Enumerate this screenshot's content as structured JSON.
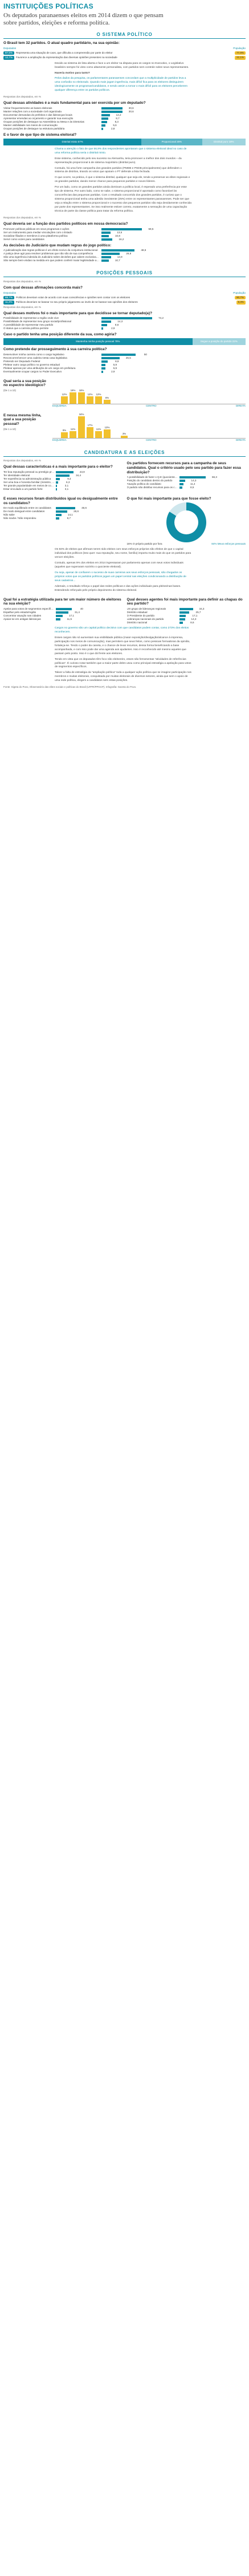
{
  "header": {
    "kicker": "INSTITUIÇÕES POLÍTICAS",
    "deck": "Os deputados paranaenses eleitos em 2014 dizem o que pensam sobre partidos, eleições e reforma política."
  },
  "sections": {
    "s1": "O SISTEMA POLÍTICO",
    "s2": "POSIÇÕES PESSOAIS",
    "s3": "CANDIDATURA E AS ELEIÇÕES"
  },
  "q1": {
    "title": "O Brasil tem 32 partidos. O atual quadro partidário, na sua opinião:",
    "headers": [
      "Deputados",
      "População"
    ],
    "rows": [
      {
        "pct_dep": "87,5%",
        "label": "Representa uma situação de caos, que dificulta a compreensão por parte do eleitor",
        "pct_pop": "77,9%"
      },
      {
        "pct_dep": "12,7%",
        "label": "Favorece a ampliação da representação das diversas opiniões presentes na sociedade",
        "pct_pop": "22,1%"
      }
    ]
  },
  "text1": {
    "p1": "Devido ao sistema de lista aberta e face a um eleitor na disputa para os cargos no Executivo, o Legislativo brasileiro sempre foi visto como altamente personalista, com partidos sem controle sobre seus representantes.",
    "p2": "Haveria motivo para tanto?",
    "p3": "Pelos dados da pesquisa, os parlamentares paranaenses concordam que a multiplicidade de partidos leva a uma confusão no eleitorado. Quando mais jogam ingerência, mais difícil fica para os eleitores distinguirem ideologicamente os programas/candidatos, e sendo assim a tornar o mais difícil para os eleitores perceberem qualquer diferença entre os partidos políticos."
  },
  "q2": {
    "note": "Respostas dos deputados, em %",
    "title": "Qual dessas atividades é a mais fundamental para ser exercida por um deputado?",
    "rows": [
      {
        "label": "Visitar frequentemente as bases eleitorais",
        "value": 30.6
      },
      {
        "label": "Manter relações com a sociedade civil organizada",
        "value": 30.6
      },
      {
        "label": "Documentar demandas do prefeitos e das lideranças locais",
        "value": 12.2
      },
      {
        "label": "Apresentar emendas ao orçamento e garantir sua execução",
        "value": 9.7
      },
      {
        "label": "Ocupar posições de destaque na Assembleia ou Mesa e às Diretorias",
        "value": 8.3
      },
      {
        "label": "Manter visibilidade nos meios de comunicação",
        "value": 5.6
      },
      {
        "label": "Ocupar posições de destaque na estrutura partidária",
        "value": 2.8
      }
    ]
  },
  "q3": {
    "title": "E o favor de que tipo de sistema eleitoral?",
    "segments": [
      {
        "label": "Distrital misto",
        "value": "57%",
        "pct": 57
      },
      {
        "label": "Proporcional",
        "value": "25%",
        "pct": 25
      },
      {
        "label": "Distrital puro",
        "value": "18%",
        "pct": 18
      }
    ]
  },
  "text2": {
    "p1": "Chama a atenção o fato de que 56,9% dos respondentes apontaram que o sistema eleitoral ideal no caso de uma reforma política seria o distrital misto.",
    "p2": "Esse sistema, conhecido pelo seu sucesso na Alemanha, teria promover a melhor dos dois mundos – da representação proporcional à de sistema majoritário (distrital puro).",
    "p3": "Contudo, há uma forte campanha dos grandes partidos (PMDB e PSDB principalmente) que defendem o sistema de distritos, tirando os votos que apoiam o PT defende a lista fechada.",
    "p4": "O que ocorre, na prática, é que o sistema distrital, qualquer que seja ele, tende a preservar as elites regionais e os grandes partidos, dando menor chance para pequenos partidos e novos líderes.",
    "p5": "Por um lado, como os grandes partidos ainda dominam a política local, é esperado uma preferência por esse tipo de sistema. Por outro lado, como se sabe, o sistema proporcional é apontado como favorável às concorrências das pequenas partidas. Com o resultado concorrido dos grandes partidos, é curioso que o sistema proporcional tenha uma adesão inexistente (25%) entre os representantes paranaenses. Pode ser que veja a relação entre o sistema proporcional e o sucesso dos pequenos partidos não seja devidamente conhecida por parte dos representantes. Se isso realmente estiver correto, exatamente a sensação de uma capacitação técnica de parte da classe política para tratar da reforma política."
  },
  "q4": {
    "note": "Respostas dos deputados, em %",
    "title": "Qual deveria ser a função dos partidos políticos em nossa democracia?",
    "rows": [
      {
        "label": "Promover políticas públicas em seus programas e ações",
        "value": 59.5
      },
      {
        "label": "Ser um instrumento para mediar vinculações com o Estado",
        "value": 13.5
      },
      {
        "label": "Socializar filiados e membros à uma plataforma política",
        "value": 10.8
      },
      {
        "label": "Servir como vozes para candidatos",
        "value": 16.2
      }
    ]
  },
  "q5": {
    "title": "As decisões do Judiciário que mudam regras do jogo político:",
    "rows": [
      {
        "label": "A judicialização das regras políticas é um efeito nocivo da conjuntura institucional",
        "value": 48.6
      },
      {
        "label": "A justiça deve agir para resolver problemas que não são de sua competência",
        "value": 26.8
      },
      {
        "label": "São uma ingerência indevida do Judiciário sobre decisões que cabem exclusivamente ao Poder Legislativo",
        "value": 13.9
      },
      {
        "label": "São sempre bem-vindas na medida em que podem conferir maior legitimidade ao sistema político",
        "value": 10.7
      }
    ]
  },
  "q6": {
    "note": "Respostas dos deputados, em %",
    "title": "Com qual dessas afirmações concorda mais?",
    "headers": [
      "Deputados",
      "População"
    ],
    "rows": [
      {
        "pct_dep": "88,7%",
        "label": "Políticos deveriam votar de acordo com suas consciências e opiniões sem contar com os eleitores",
        "pct_pop": "90,7%"
      },
      {
        "pct_dep": "11,3%",
        "label": "Políticos deveriam se basear no seu próprio julgamento ao invés de se basear nas opiniões dos eleitores",
        "pct_pop": "9,3%"
      }
    ]
  },
  "q7": {
    "note": "Respostas dos deputados, em %",
    "title": "Qual desses motivos foi o mais importante para que decidisse se tornar deputado(a)?",
    "rows": [
      {
        "label": "Possibilidade de representar a região onde vive",
        "value": 74.2
      },
      {
        "label": "Possibilidade de representar meu grupo social/profissional",
        "value": 14.3
      },
      {
        "label": "A possibilidade de representar meu partido",
        "value": 8.6
      },
      {
        "label": "O status que a carreira política permite",
        "value": 2.9
      }
    ]
  },
  "q8": {
    "title": "Caso o partido tenha uma posição diferente da sua, como agiria?",
    "segments": [
      {
        "label": "Mantenha minha posição pessoal",
        "value": "78%",
        "pct": 78
      },
      {
        "label": "Segue a posição do partido",
        "value": "22%",
        "pct": 22
      }
    ]
  },
  "q9": {
    "title": "Como pretende dar prosseguimento à sua carreira política?",
    "rows": [
      {
        "label": "Desenvolver minha carreira como o cargo legislativo",
        "value": 50.0
      },
      {
        "label": "Reconcorrer/vencer uma cadeira nesta casa legislativa",
        "value": 26.5
      },
      {
        "label": "Pretendo ser Deputado Federal",
        "value": 8.8
      },
      {
        "label": "Pleitear outro cargo político no governo estadual",
        "value": 5.9
      },
      {
        "label": "Pleitear apenas por uma atribuição de um cargo em prefeitura",
        "value": 5.9
      },
      {
        "label": "Eventualmente ocupar cargos no Poder Executivo",
        "value": 2.9
      }
    ]
  },
  "q10": {
    "title": "Qual seria a sua posição no espectro ideológico?",
    "sub": "(De 1 a 10)",
    "values": [
      0,
      12,
      18,
      18,
      12,
      12,
      6,
      0,
      0,
      0
    ],
    "value_labels": [
      "",
      "12%",
      "18%",
      "18%",
      "12%",
      "12%",
      "6%",
      "",
      "",
      ""
    ],
    "axis": [
      "ESQUERDA",
      "CENTRO",
      "DIREITA"
    ]
  },
  "q11": {
    "title": "E nessa mesma linha, qual a sua posição pessoal?",
    "sub": "(De 1 a 10)",
    "values": [
      0,
      9,
      11,
      34,
      17,
      11,
      13,
      0,
      3,
      0
    ],
    "value_labels": [
      "",
      "9%",
      "11%",
      "34%",
      "17%",
      "11%",
      "13%",
      "",
      "3%",
      ""
    ],
    "axis": [
      "ESQUERDA",
      "CENTRO",
      "DIREITA"
    ]
  },
  "q12": {
    "note": "Respostas dos deputados, em %",
    "title": "Qual dessas características é a mais importante para o eleitor?",
    "rows": [
      {
        "label": "Ter boa reputação pessoal ou prestígio profissional na comunidade",
        "value": 43.9
      },
      {
        "label": "Ter identidade eleitoral",
        "value": 34.4
      },
      {
        "label": "Ter experiência na administração pública",
        "value": 9.4
      },
      {
        "label": "Ser uma boa e honesta familiar (ministro, CPMI e MPs)",
        "value": 6.3
      },
      {
        "label": "Ter grande popularidade em meios de comunicação",
        "value": 3.1
      },
      {
        "label": "Estar vinculado a um partido forte",
        "value": 3.1
      }
    ]
  },
  "q13": {
    "title": "Os partidos fornecem recursos para a campanha de seus candidatos. Qual o critério usado pelo seu partido para fazer essa distribuição?",
    "rows": [
      {
        "label": "A possibilidade de fazer o Q.E (quociente eleitoral) com os votos dos candidatos",
        "value": 66.3
      },
      {
        "label": "Posição do candidato dentro do partido",
        "value": 14.3
      },
      {
        "label": "Atuação política do candidato",
        "value": 11.4
      },
      {
        "label": "O partido não distribui recursos para os candidatos",
        "value": 8.5
      }
    ]
  },
  "q14": {
    "title": "E esses recursos foram distribuídos igual ou desigualmente entre os candidatos?",
    "rows": [
      {
        "label": "De modo equilibrado entre os candidatos",
        "value": 48.6
      },
      {
        "label": "De modo desigual entre candidatos",
        "value": 28.6
      },
      {
        "label": "Não sabe",
        "value": 14.1
      },
      {
        "label": "Não soube / Não respondeu",
        "value": 8.7
      }
    ]
  },
  "q15": {
    "title": "O que foi mais importante para que fosse eleito?",
    "items": [
      {
        "label": "16% O próprio partido por fora",
        "value": "16%"
      },
      {
        "label": "84% Meus esforços pessoais",
        "value": "84%"
      }
    ],
    "pct_main": 84
  },
  "text3": {
    "p1": "Os 84% de eleitos que afirmam terem sido eleitos com seus esforços próprios são efeitos de que o capital individual dos políticos (isso quer: sua reputação, seu nome, família) importa muito mais do que os partidos para vencer eleições.",
    "p2": "Contudo, apenas 5% dos eleitos em 2014 ingressaram por parlamento apenas com seus votos individuais (aqueles que superaram sozinho o quociente eleitoral).",
    "p3": "Ou seja, apesar de confiarem o sucesso de suas carreiras aos seus esforços pessoais, são chegados os próprios votos que os partidos políticos jogam um papel central nas eleições condicionando a distribuição de seus cadastros...",
    "p4": "Ademais, o resultado reforça o papel das redes políticas e das ações individuais para pleitos/nas bases. Estendendo reforçado pelo próprio depoimento do sistema eleitoral."
  },
  "q16": {
    "title": "Qual foi a estratégia utilizada para ter um maior número de eleitores na sua eleição?",
    "rows": [
      {
        "label": "Apelar para votos de segmentos específicos",
        "value": 40.0
      },
      {
        "label": "Espalhar pelo estado/região",
        "value": 31.4
      },
      {
        "label": "Concentrar atuação nas cidades",
        "value": 17.1
      },
      {
        "label": "Apoiar-se em antigas lideranças",
        "value": 11.5
      }
    ]
  },
  "q17": {
    "title": "Qual desses agentes foi mais importante para definir as chapas do seu partido?",
    "rows": [
      {
        "label": "Um grupo de lideranças regionais",
        "value": 34.3
      },
      {
        "label": "Diretório estadual",
        "value": 25.7
      },
      {
        "label": "O Presidente do partido",
        "value": 17.1
      },
      {
        "label": "Lideranças nacionais do partido",
        "value": 14.3
      },
      {
        "label": "Diretório nacional",
        "value": 8.6
      }
    ]
  },
  "text4": {
    "p1": "Cargos no governo são um capital político decisivo com que candidatos podem contar, como 273% dos eleitos reconhecem.",
    "p2": "Esses cargos não só aumentam sua visibilidade pública (maior exposição/divulgação/alcance à imprensa, participação nos meios de comunicação), mas permitem que seus feitos, como pessoas formadoras da opinião, fortaleça-se. Tendo o poder da caneta, e o chance de levar recursos, dessa forma beneficiando a base acompanhada, e com isso pode dar uma agenda aos ajudantes. Isso é reconhecido até mesmo aqueles que passam pelo posto. Isso é o que dá frente aos eleitores.",
    "p3": "Tendo em vista que os deputados têm foco não eleitoreiro, esses são ferramentas \"atividades de referências políticas\". É curioso notar também que a maior parte deles usou como principal estratégia a apelação para votos de segmentos específicos.",
    "p4": "Talvez a falta de estratégia da \"ampliação política\" toda a qualquer ação política que se imagine participação nos membros e muitas eleitorais, conquistada por muitas eleitorais de diversos setores, ainda que sem o apoio de uma rede política, elegem a candidatos sem estas posições."
  },
  "footer": {
    "source": "Fonte: Sigeta do Povo, Observatório das elites sociais e políticas do Brasil (UFPR/PPGCP). Infografia: Gazeta do Povo."
  }
}
